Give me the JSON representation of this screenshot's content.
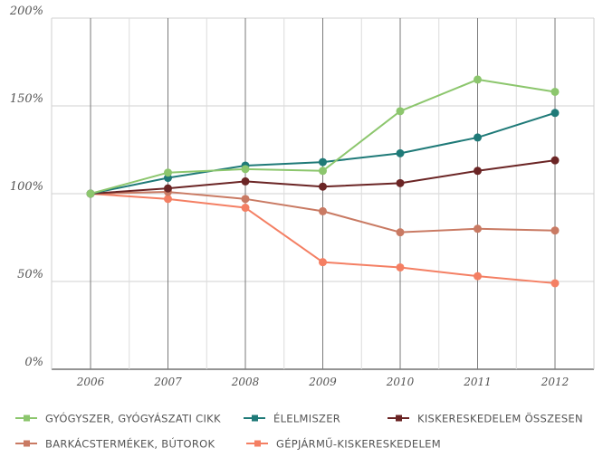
{
  "chart_data": {
    "type": "line",
    "x": [
      "2006",
      "2007",
      "2008",
      "2009",
      "2010",
      "2011",
      "2012"
    ],
    "y_ticks": [
      "0%",
      "50%",
      "100%",
      "150%",
      "200%"
    ],
    "ylim": [
      0,
      200
    ],
    "grid": "vertical and horizontal",
    "legend_position": "bottom",
    "series": [
      {
        "name": "GYÓGYSZER, GYÓGYÁSZATI CIKK",
        "color": "#8cc66d",
        "values": [
          100,
          112,
          114,
          113,
          147,
          165,
          158
        ]
      },
      {
        "name": "ÉLELMISZER",
        "color": "#1f7a78",
        "values": [
          100,
          109,
          116,
          118,
          123,
          132,
          146
        ]
      },
      {
        "name": "KISKERESKEDELEM ÖSSZESEN",
        "color": "#6b2525",
        "values": [
          100,
          103,
          107,
          104,
          106,
          113,
          119
        ]
      },
      {
        "name": "BARKÁCSTERMÉKEK, BÚTOROK",
        "color": "#c97a63",
        "values": [
          100,
          101,
          97,
          90,
          78,
          80,
          79
        ]
      },
      {
        "name": "GÉPJÁRMŰ-KISKERESKEDELEM",
        "color": "#f47f63",
        "values": [
          100,
          97,
          92,
          61,
          58,
          53,
          49
        ]
      }
    ]
  }
}
